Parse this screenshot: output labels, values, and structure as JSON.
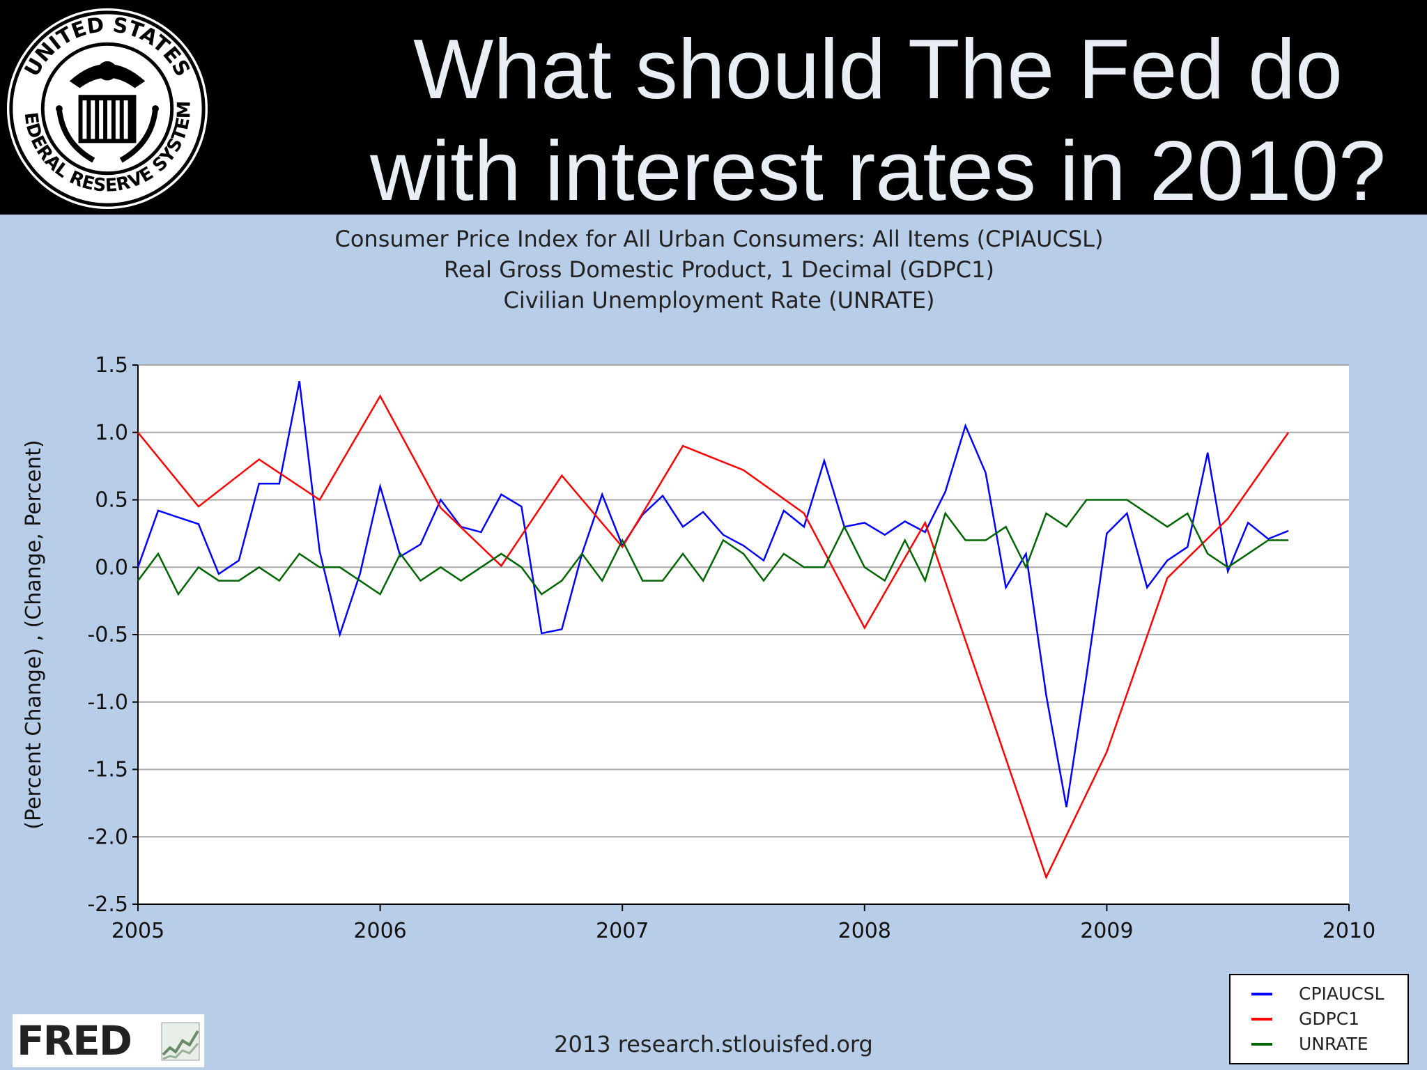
{
  "slide": {
    "headline_line1": "What should The Fed do",
    "headline_line2": "with interest rates in 2010?",
    "seal_text": "UNITED STATES FEDERAL RESERVE SYSTEM",
    "footer_source": "2013 research.stlouisfed.org",
    "logo_text": "FRED"
  },
  "colors": {
    "background_panel": "#b7cde8",
    "plot_area": "#ffffff",
    "grid": "#a9a9a9",
    "cpi": "#0000ff",
    "gdp": "#ff0000",
    "unrate": "#006400"
  },
  "chart_data": {
    "type": "line",
    "title_lines": [
      "Consumer Price Index for All Urban Consumers: All Items (CPIAUCSL)",
      "Real Gross Domestic Product, 1 Decimal (GDPC1)",
      "Civilian Unemployment Rate (UNRATE)"
    ],
    "xlabel": "",
    "ylabel": "(Percent Change) , (Change, Percent)",
    "xlim": [
      2005,
      2010
    ],
    "ylim": [
      -2.5,
      1.5
    ],
    "x_ticks": [
      "2005",
      "2006",
      "2007",
      "2008",
      "2009",
      "2010"
    ],
    "y_ticks": [
      "1.5",
      "1.0",
      "0.5",
      "0.0",
      "-0.5",
      "-1.0",
      "-1.5",
      "-2.0",
      "-2.5"
    ],
    "grid": true,
    "legend_position": "bottom-right",
    "series": [
      {
        "name": "CPIAUCSL",
        "color": "#0000ff",
        "x": [
          "2005-01",
          "2005-02",
          "2005-03",
          "2005-04",
          "2005-05",
          "2005-06",
          "2005-07",
          "2005-08",
          "2005-09",
          "2005-10",
          "2005-11",
          "2005-12",
          "2006-01",
          "2006-02",
          "2006-03",
          "2006-04",
          "2006-05",
          "2006-06",
          "2006-07",
          "2006-08",
          "2006-09",
          "2006-10",
          "2006-11",
          "2006-12",
          "2007-01",
          "2007-02",
          "2007-03",
          "2007-04",
          "2007-05",
          "2007-06",
          "2007-07",
          "2007-08",
          "2007-09",
          "2007-10",
          "2007-11",
          "2007-12",
          "2008-01",
          "2008-02",
          "2008-03",
          "2008-04",
          "2008-05",
          "2008-06",
          "2008-07",
          "2008-08",
          "2008-09",
          "2008-10",
          "2008-11",
          "2008-12",
          "2009-01",
          "2009-02",
          "2009-03",
          "2009-04",
          "2009-05",
          "2009-06",
          "2009-07",
          "2009-08",
          "2009-09",
          "2009-10"
        ],
        "values": [
          0.0,
          0.42,
          0.37,
          0.32,
          -0.05,
          0.05,
          0.62,
          0.62,
          1.38,
          0.12,
          -0.5,
          -0.05,
          0.6,
          0.08,
          0.17,
          0.5,
          0.3,
          0.26,
          0.54,
          0.45,
          -0.49,
          -0.46,
          0.1,
          0.54,
          0.16,
          0.39,
          0.53,
          0.3,
          0.41,
          0.24,
          0.16,
          0.05,
          0.42,
          0.3,
          0.79,
          0.3,
          0.33,
          0.24,
          0.34,
          0.26,
          0.56,
          1.05,
          0.7,
          -0.15,
          0.1,
          -0.95,
          -1.78,
          -0.8,
          0.25,
          0.4,
          -0.15,
          0.05,
          0.15,
          0.85,
          -0.03,
          0.33,
          0.21,
          0.27
        ]
      },
      {
        "name": "GDPC1",
        "color": "#ff0000",
        "x": [
          "2005-01",
          "2005-04",
          "2005-07",
          "2005-10",
          "2006-01",
          "2006-04",
          "2006-07",
          "2006-10",
          "2007-01",
          "2007-04",
          "2007-07",
          "2007-10",
          "2008-01",
          "2008-04",
          "2008-07",
          "2008-10",
          "2009-01",
          "2009-04",
          "2009-07",
          "2009-10"
        ],
        "values": [
          1.0,
          0.45,
          0.8,
          0.5,
          1.27,
          0.44,
          0.01,
          0.68,
          0.15,
          0.9,
          0.72,
          0.4,
          -0.45,
          0.33,
          -0.98,
          -2.3,
          -1.37,
          -0.08,
          0.36,
          1.0
        ]
      },
      {
        "name": "UNRATE",
        "color": "#006400",
        "x": [
          "2005-01",
          "2005-02",
          "2005-03",
          "2005-04",
          "2005-05",
          "2005-06",
          "2005-07",
          "2005-08",
          "2005-09",
          "2005-10",
          "2005-11",
          "2005-12",
          "2006-01",
          "2006-02",
          "2006-03",
          "2006-04",
          "2006-05",
          "2006-06",
          "2006-07",
          "2006-08",
          "2006-09",
          "2006-10",
          "2006-11",
          "2006-12",
          "2007-01",
          "2007-02",
          "2007-03",
          "2007-04",
          "2007-05",
          "2007-06",
          "2007-07",
          "2007-08",
          "2007-09",
          "2007-10",
          "2007-11",
          "2007-12",
          "2008-01",
          "2008-02",
          "2008-03",
          "2008-04",
          "2008-05",
          "2008-06",
          "2008-07",
          "2008-08",
          "2008-09",
          "2008-10",
          "2008-11",
          "2008-12",
          "2009-01",
          "2009-02",
          "2009-03",
          "2009-04",
          "2009-05",
          "2009-06",
          "2009-07",
          "2009-08",
          "2009-09",
          "2009-10"
        ],
        "values": [
          -0.1,
          0.1,
          -0.2,
          0.0,
          -0.1,
          -0.1,
          0.0,
          -0.1,
          0.1,
          0.0,
          0.0,
          -0.1,
          -0.2,
          0.1,
          -0.1,
          0.0,
          -0.1,
          0.0,
          0.1,
          0.0,
          -0.2,
          -0.1,
          0.1,
          -0.1,
          0.2,
          -0.1,
          -0.1,
          0.1,
          -0.1,
          0.2,
          0.1,
          -0.1,
          0.1,
          0.0,
          0.0,
          0.3,
          0.0,
          -0.1,
          0.2,
          -0.1,
          0.4,
          0.2,
          0.2,
          0.3,
          0.0,
          0.4,
          0.3,
          0.5,
          0.5,
          0.5,
          0.4,
          0.3,
          0.4,
          0.1,
          0.0,
          0.1,
          0.2,
          0.2
        ]
      }
    ]
  }
}
